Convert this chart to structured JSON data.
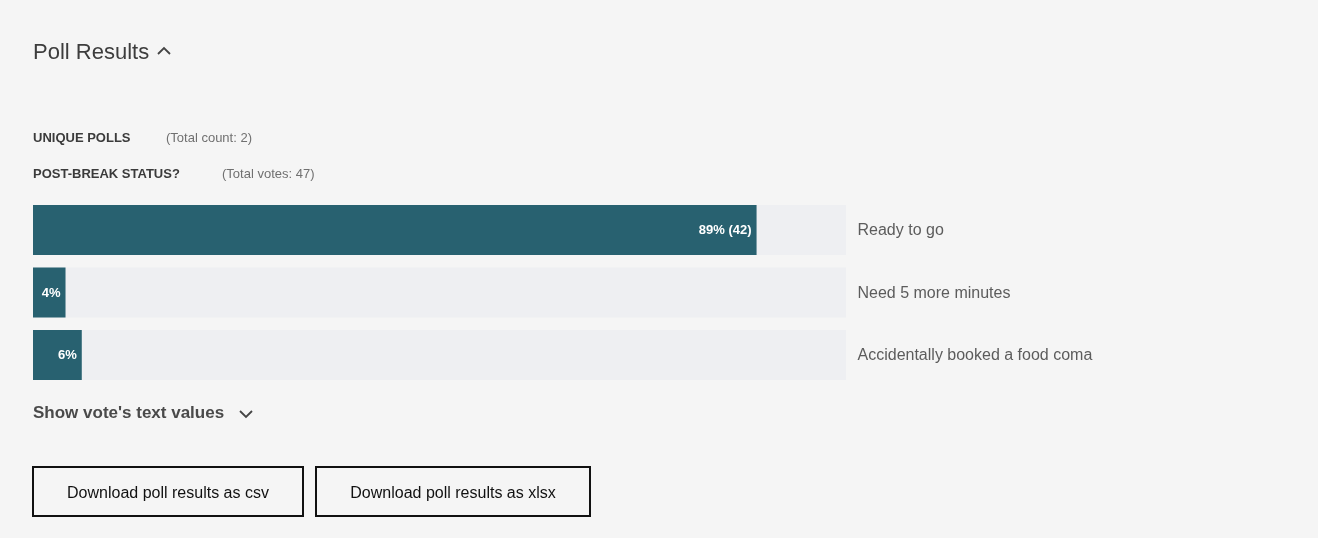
{
  "chart_data": {
    "type": "bar",
    "orientation": "horizontal",
    "title": "Poll Results",
    "annotations": [
      "UNIQUE POLLS",
      "(Total count: 2)",
      "POST-BREAK STATUS?",
      "(Total votes: 47)",
      "Show vote's text values",
      "Download poll results as csv",
      "Download poll results as xlsx"
    ],
    "categories": [
      "Ready to go",
      "Need 5 more minutes",
      "Accidentally booked a food coma"
    ],
    "values": [
      89,
      4,
      6
    ],
    "value_labels": [
      "89% (42)",
      "4%",
      "6%"
    ],
    "color": "#286170",
    "xlim": [
      0,
      100
    ],
    "tick_labels": "y"
  }
}
